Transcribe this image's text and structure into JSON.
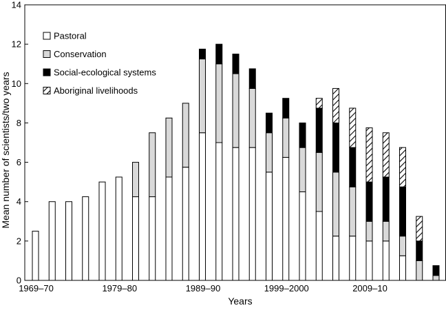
{
  "chart_data": {
    "type": "bar",
    "stacked": true,
    "xlabel": "Years",
    "ylabel": "Mean number of scientists/two years",
    "ylim": [
      0,
      14
    ],
    "yticks": [
      0,
      2,
      4,
      6,
      8,
      10,
      12,
      14
    ],
    "x_tick_labels": [
      {
        "index": 0,
        "label": "1969–70"
      },
      {
        "index": 5,
        "label": "1979–80"
      },
      {
        "index": 10,
        "label": "1989–90"
      },
      {
        "index": 15,
        "label": "1999–2000"
      },
      {
        "index": 20,
        "label": "2009–10"
      }
    ],
    "grid": false,
    "legend_position": "top-left",
    "series": [
      {
        "name": "Pastoral",
        "fill": "#ffffff",
        "pattern": "none",
        "values": [
          2.5,
          4.0,
          4.0,
          4.25,
          5.0,
          5.25,
          4.25,
          4.25,
          5.25,
          5.75,
          7.5,
          7.0,
          6.75,
          6.75,
          5.5,
          6.25,
          4.5,
          3.5,
          2.25,
          2.25,
          2.0,
          2.0,
          1.25,
          0.0,
          0.0
        ]
      },
      {
        "name": "Conservation",
        "fill": "#d9d9d9",
        "pattern": "none",
        "values": [
          0,
          0,
          0,
          0,
          0,
          0,
          1.75,
          3.25,
          3.0,
          3.25,
          3.75,
          4.0,
          3.75,
          3.0,
          2.0,
          2.0,
          2.25,
          3.0,
          3.25,
          2.5,
          1.0,
          1.0,
          1.0,
          1.0,
          0.25
        ]
      },
      {
        "name": "Social-ecological systems",
        "fill": "#000000",
        "pattern": "none",
        "values": [
          0,
          0,
          0,
          0,
          0,
          0,
          0,
          0,
          0,
          0,
          0.5,
          1.0,
          1.0,
          1.0,
          1.0,
          1.0,
          1.25,
          2.25,
          2.5,
          2.0,
          2.0,
          2.25,
          2.5,
          1.0,
          0.5
        ]
      },
      {
        "name": "Aboriginal livelihoods",
        "fill": "#ffffff",
        "pattern": "hatch",
        "values": [
          0,
          0,
          0,
          0,
          0,
          0,
          0,
          0,
          0,
          0,
          0,
          0,
          0,
          0,
          0,
          0,
          0,
          0.5,
          1.75,
          2.0,
          2.75,
          2.25,
          2.0,
          1.25,
          0
        ]
      }
    ]
  }
}
